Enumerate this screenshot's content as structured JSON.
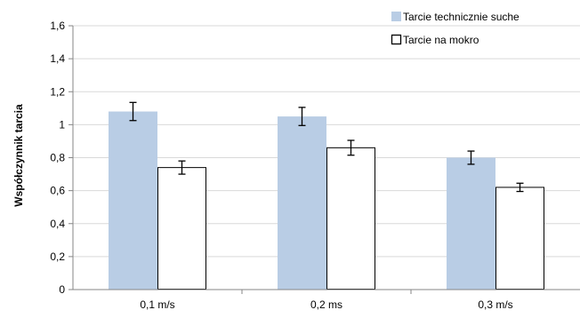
{
  "chart_data": {
    "type": "bar",
    "title": "",
    "xlabel": "",
    "ylabel": "Współczynnik tarcia",
    "ylim": [
      0,
      1.6
    ],
    "yticks": [
      0,
      0.2,
      0.4,
      0.6,
      0.8,
      1,
      1.2,
      1.4,
      1.6
    ],
    "ytick_labels": [
      "0",
      "0,2",
      "0,4",
      "0,6",
      "0,8",
      "1",
      "1,2",
      "1,4",
      "1,6"
    ],
    "grid": true,
    "legend_position": "top-right",
    "categories": [
      "0,1 m/s",
      "0,2 ms",
      "0,3 m/s"
    ],
    "series": [
      {
        "name": "Tarcie technicznie suche",
        "values": [
          1.08,
          1.05,
          0.8
        ],
        "errors": [
          0.055,
          0.055,
          0.04
        ],
        "fill": "#b9cde5",
        "stroke": "none"
      },
      {
        "name": "Tarcie na mokro",
        "values": [
          0.74,
          0.86,
          0.62
        ],
        "errors": [
          0.04,
          0.045,
          0.025
        ],
        "fill": "#ffffff",
        "stroke": "#000000"
      }
    ]
  }
}
